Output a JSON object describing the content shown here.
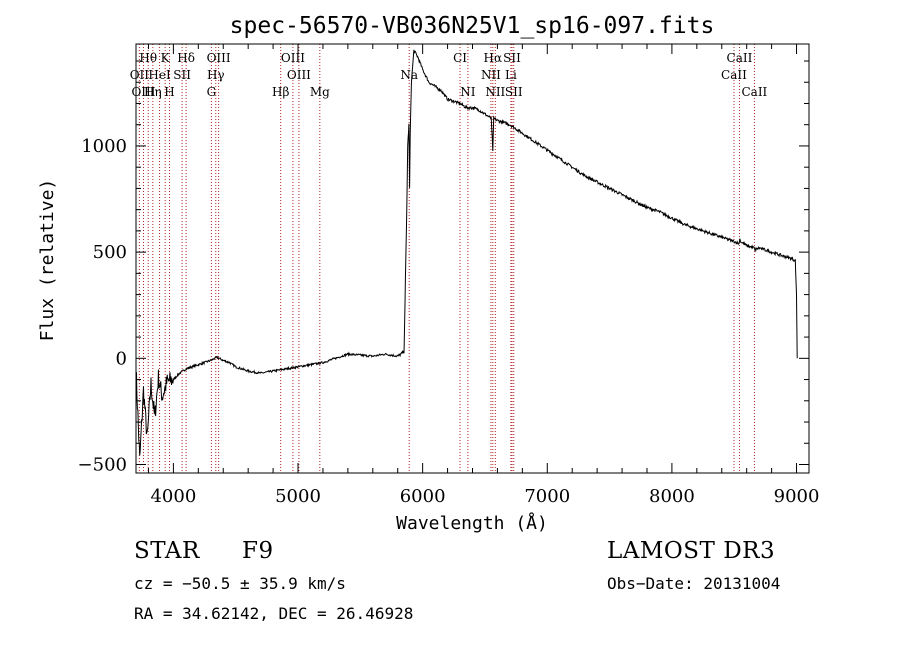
{
  "chart_data": {
    "type": "line",
    "title": "spec-56570-VB036N25V1_sp16-097.fits",
    "xlabel": "Wavelength (Å)",
    "ylabel": "Flux (relative)",
    "xlim": [
      3700,
      9100
    ],
    "ylim": [
      -540,
      1480
    ],
    "x_ticks": [
      4000,
      5000,
      6000,
      7000,
      8000,
      9000
    ],
    "x_tick_labels": [
      "4000",
      "5000",
      "6000",
      "7000",
      "8000",
      "9000"
    ],
    "y_ticks": [
      -500,
      0,
      500,
      1000
    ],
    "y_tick_labels": [
      "−500",
      "0",
      "500",
      "1000"
    ],
    "grid": false,
    "line_color": "#000000",
    "marker_color": "#b22222",
    "spectrum": {
      "x": [
        3700,
        3730,
        3760,
        3790,
        3820,
        3850,
        3880,
        3910,
        3950,
        4000,
        4050,
        4100,
        4150,
        4200,
        4250,
        4300,
        4350,
        4400,
        4450,
        4500,
        4600,
        4700,
        4800,
        4900,
        5000,
        5100,
        5200,
        5300,
        5400,
        5500,
        5600,
        5700,
        5800,
        5850,
        5870,
        5880,
        5890,
        5895,
        5900,
        5910,
        5930,
        5960,
        6000,
        6050,
        6100,
        6150,
        6200,
        6250,
        6300,
        6350,
        6400,
        6450,
        6500,
        6550,
        6563,
        6570,
        6600,
        6650,
        6700,
        6800,
        6900,
        7000,
        7100,
        7200,
        7300,
        7400,
        7500,
        7600,
        7700,
        7800,
        7900,
        8000,
        8100,
        8200,
        8300,
        8400,
        8500,
        8540,
        8545,
        8550,
        8600,
        8660,
        8665,
        8700,
        8800,
        8900,
        8960,
        8990,
        9000,
        9005
      ],
      "y": [
        -50,
        -480,
        -150,
        -380,
        -120,
        -280,
        -90,
        -180,
        -110,
        -100,
        -70,
        -50,
        -40,
        -30,
        -20,
        -10,
        5,
        -10,
        -20,
        -40,
        -60,
        -70,
        -60,
        -50,
        -40,
        -30,
        -20,
        0,
        20,
        15,
        10,
        20,
        10,
        30,
        600,
        1000,
        1100,
        800,
        1050,
        1300,
        1450,
        1420,
        1360,
        1300,
        1280,
        1260,
        1220,
        1210,
        1200,
        1180,
        1180,
        1170,
        1150,
        1130,
        980,
        1130,
        1120,
        1110,
        1100,
        1060,
        1020,
        980,
        940,
        900,
        860,
        830,
        800,
        770,
        740,
        710,
        690,
        660,
        630,
        610,
        590,
        570,
        550,
        540,
        570,
        550,
        530,
        520,
        510,
        520,
        500,
        480,
        470,
        460,
        300,
        0
      ]
    },
    "line_markers": [
      {
        "name": "Hθ",
        "x": 3798,
        "row": 0
      },
      {
        "name": "K",
        "x": 3934,
        "row": 0
      },
      {
        "name": "Hδ",
        "x": 4102,
        "row": 0
      },
      {
        "name": "OIII",
        "x": 4363,
        "row": 0
      },
      {
        "name": "OIII",
        "x": 4959,
        "row": 0
      },
      {
        "name": "CI",
        "x": 6300,
        "row": 0
      },
      {
        "name": "Hα",
        "x": 6563,
        "row": 0
      },
      {
        "name": "SII",
        "x": 6717,
        "row": 0
      },
      {
        "name": "CaII",
        "x": 8542,
        "row": 0
      },
      {
        "name": "OII",
        "x": 3727,
        "row": 1
      },
      {
        "name": "HeI",
        "x": 3889,
        "row": 1
      },
      {
        "name": "SII",
        "x": 4070,
        "row": 1
      },
      {
        "name": "Hγ",
        "x": 4340,
        "row": 1
      },
      {
        "name": "OIII",
        "x": 5007,
        "row": 1
      },
      {
        "name": "Na",
        "x": 5892,
        "row": 1
      },
      {
        "name": "NII",
        "x": 6548,
        "row": 1
      },
      {
        "name": "Li",
        "x": 6708,
        "row": 1
      },
      {
        "name": "CaII",
        "x": 8498,
        "row": 1
      },
      {
        "name": "OIII",
        "x": 3760,
        "row": 2
      },
      {
        "name": "Hη",
        "x": 3835,
        "row": 2
      },
      {
        "name": "H",
        "x": 3969,
        "row": 2
      },
      {
        "name": "G",
        "x": 4305,
        "row": 2
      },
      {
        "name": "Hβ",
        "x": 4861,
        "row": 2
      },
      {
        "name": "Mg",
        "x": 5175,
        "row": 2
      },
      {
        "name": "NI",
        "x": 6363,
        "row": 2
      },
      {
        "name": "NII",
        "x": 6583,
        "row": 2
      },
      {
        "name": "SII",
        "x": 6731,
        "row": 2
      },
      {
        "name": "CaII",
        "x": 8662,
        "row": 2
      }
    ]
  },
  "info": {
    "object_type": "STAR",
    "subclass": "F9",
    "survey": "LAMOST DR3",
    "redshift": "cz = −50.5 ± 35.9 km/s",
    "obs_date": "Obs−Date: 20131004",
    "coordinates": "RA =  34.62142, DEC =  26.46928"
  }
}
